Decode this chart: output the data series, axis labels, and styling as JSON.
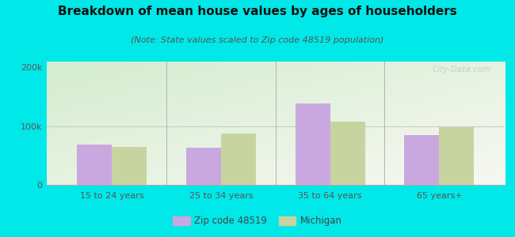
{
  "title": "Breakdown of mean house values by ages of householders",
  "subtitle": "(Note: State values scaled to Zip code 48519 population)",
  "categories": [
    "15 to 24 years",
    "25 to 34 years",
    "35 to 64 years",
    "65 years+"
  ],
  "zip_values": [
    68000,
    63000,
    138000,
    85000
  ],
  "michigan_values": [
    65000,
    88000,
    108000,
    98000
  ],
  "zip_color": "#c9a8e0",
  "michigan_color": "#c8d4a0",
  "background_outer": "#00e8e8",
  "ylim": [
    0,
    210000
  ],
  "ytick_labels": [
    "0",
    "100k",
    "200k"
  ],
  "ytick_vals": [
    0,
    100000,
    200000
  ],
  "legend_zip_label": "Zip code 48519",
  "legend_michigan_label": "Michigan",
  "bar_width": 0.32,
  "title_fontsize": 11,
  "subtitle_fontsize": 8
}
